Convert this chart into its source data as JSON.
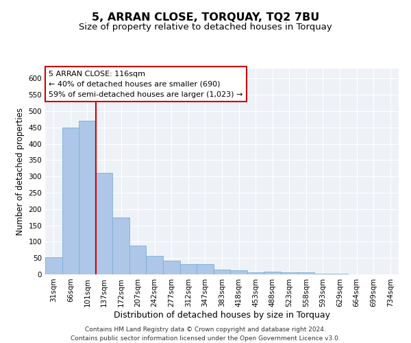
{
  "title": "5, ARRAN CLOSE, TORQUAY, TQ2 7BU",
  "subtitle": "Size of property relative to detached houses in Torquay",
  "xlabel": "Distribution of detached houses by size in Torquay",
  "ylabel": "Number of detached properties",
  "footnote1": "Contains HM Land Registry data © Crown copyright and database right 2024.",
  "footnote2": "Contains public sector information licensed under the Open Government Licence v3.0.",
  "categories": [
    "31sqm",
    "66sqm",
    "101sqm",
    "137sqm",
    "172sqm",
    "207sqm",
    "242sqm",
    "277sqm",
    "312sqm",
    "347sqm",
    "383sqm",
    "418sqm",
    "453sqm",
    "488sqm",
    "523sqm",
    "558sqm",
    "593sqm",
    "629sqm",
    "664sqm",
    "699sqm",
    "734sqm"
  ],
  "values": [
    53,
    450,
    470,
    310,
    175,
    88,
    57,
    42,
    32,
    32,
    15,
    12,
    7,
    8,
    6,
    7,
    2,
    2,
    1,
    1,
    1
  ],
  "bar_color": "#aec6e8",
  "bar_edge_color": "#7aafd4",
  "background_color": "#eef2f7",
  "grid_color": "#ffffff",
  "annotation_box_lines": [
    "5 ARRAN CLOSE: 116sqm",
    "← 40% of detached houses are smaller (690)",
    "59% of semi-detached houses are larger (1,023) →"
  ],
  "annotation_box_color": "#cc0000",
  "red_line_x": 2.5,
  "ylim": [
    0,
    630
  ],
  "yticks": [
    0,
    50,
    100,
    150,
    200,
    250,
    300,
    350,
    400,
    450,
    500,
    550,
    600
  ],
  "title_fontsize": 11.5,
  "subtitle_fontsize": 9.5,
  "xlabel_fontsize": 9,
  "ylabel_fontsize": 8.5,
  "tick_fontsize": 7.5,
  "annotation_fontsize": 8,
  "footnote_fontsize": 6.5
}
